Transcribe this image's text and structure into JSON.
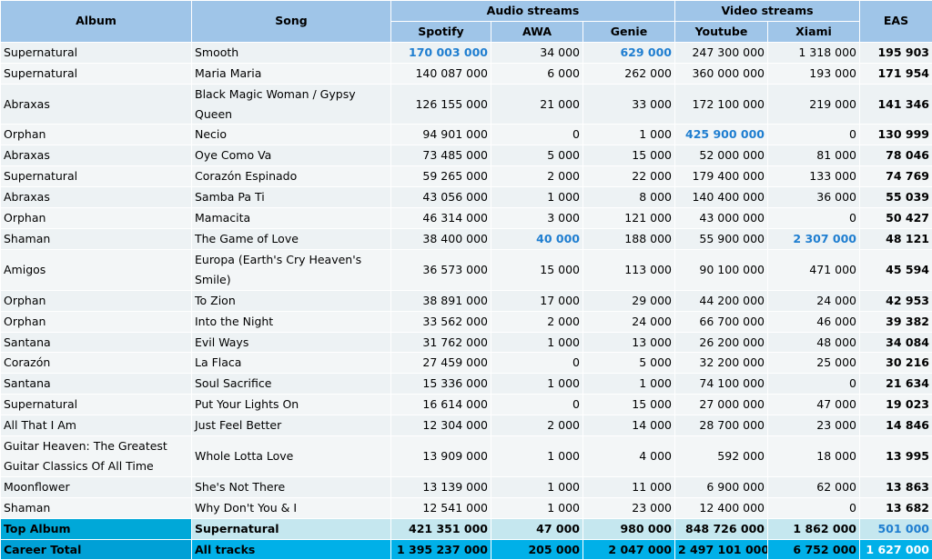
{
  "headers": {
    "album": "Album",
    "song": "Song",
    "audio_group": "Audio streams",
    "video_group": "Video streams",
    "eas": "EAS",
    "spotify": "Spotify",
    "awa": "AWA",
    "genie": "Genie",
    "youtube": "Youtube",
    "xiami": "Xiami"
  },
  "rows": [
    {
      "album": "Supernatural",
      "song": "Smooth",
      "spotify": "170 003 000",
      "awa": "34 000",
      "genie": "629 000",
      "youtube": "247 300 000",
      "xiami": "1 318 000",
      "eas": "195 903",
      "hl": [
        "spotify",
        "genie"
      ]
    },
    {
      "album": "Supernatural",
      "song": "Maria Maria",
      "spotify": "140 087 000",
      "awa": "6 000",
      "genie": "262 000",
      "youtube": "360 000 000",
      "xiami": "193 000",
      "eas": "171 954",
      "hl": []
    },
    {
      "album": "Abraxas",
      "song": "Black Magic Woman / Gypsy Queen",
      "spotify": "126 155 000",
      "awa": "21 000",
      "genie": "33 000",
      "youtube": "172 100 000",
      "xiami": "219 000",
      "eas": "141 346",
      "hl": []
    },
    {
      "album": "Orphan",
      "song": "Necio",
      "spotify": "94 901 000",
      "awa": "0",
      "genie": "1 000",
      "youtube": "425 900 000",
      "xiami": "0",
      "eas": "130 999",
      "hl": [
        "youtube"
      ]
    },
    {
      "album": "Abraxas",
      "song": "Oye Como Va",
      "spotify": "73 485 000",
      "awa": "5 000",
      "genie": "15 000",
      "youtube": "52 000 000",
      "xiami": "81 000",
      "eas": "78 046",
      "hl": []
    },
    {
      "album": "Supernatural",
      "song": "Corazón Espinado",
      "spotify": "59 265 000",
      "awa": "2 000",
      "genie": "22 000",
      "youtube": "179 400 000",
      "xiami": "133 000",
      "eas": "74 769",
      "hl": []
    },
    {
      "album": "Abraxas",
      "song": "Samba Pa Ti",
      "spotify": "43 056 000",
      "awa": "1 000",
      "genie": "8 000",
      "youtube": "140 400 000",
      "xiami": "36 000",
      "eas": "55 039",
      "hl": []
    },
    {
      "album": "Orphan",
      "song": "Mamacita",
      "spotify": "46 314 000",
      "awa": "3 000",
      "genie": "121 000",
      "youtube": "43 000 000",
      "xiami": "0",
      "eas": "50 427",
      "hl": []
    },
    {
      "album": "Shaman",
      "song": "The Game of Love",
      "spotify": "38 400 000",
      "awa": "40 000",
      "genie": "188 000",
      "youtube": "55 900 000",
      "xiami": "2 307 000",
      "eas": "48 121",
      "hl": [
        "awa",
        "xiami"
      ]
    },
    {
      "album": "Amigos",
      "song": "Europa (Earth's Cry Heaven's Smile)",
      "spotify": "36 573 000",
      "awa": "15 000",
      "genie": "113 000",
      "youtube": "90 100 000",
      "xiami": "471 000",
      "eas": "45 594",
      "hl": []
    },
    {
      "album": "Orphan",
      "song": "To Zion",
      "spotify": "38 891 000",
      "awa": "17 000",
      "genie": "29 000",
      "youtube": "44 200 000",
      "xiami": "24 000",
      "eas": "42 953",
      "hl": []
    },
    {
      "album": "Orphan",
      "song": "Into the Night",
      "spotify": "33 562 000",
      "awa": "2 000",
      "genie": "24 000",
      "youtube": "66 700 000",
      "xiami": "46 000",
      "eas": "39 382",
      "hl": []
    },
    {
      "album": "Santana",
      "song": "Evil Ways",
      "spotify": "31 762 000",
      "awa": "1 000",
      "genie": "13 000",
      "youtube": "26 200 000",
      "xiami": "48 000",
      "eas": "34 084",
      "hl": []
    },
    {
      "album": "Corazón",
      "song": "La Flaca",
      "spotify": "27 459 000",
      "awa": "0",
      "genie": "5 000",
      "youtube": "32 200 000",
      "xiami": "25 000",
      "eas": "30 216",
      "hl": []
    },
    {
      "album": "Santana",
      "song": "Soul Sacrifice",
      "spotify": "15 336 000",
      "awa": "1 000",
      "genie": "1 000",
      "youtube": "74 100 000",
      "xiami": "0",
      "eas": "21 634",
      "hl": []
    },
    {
      "album": "Supernatural",
      "song": "Put Your Lights On",
      "spotify": "16 614 000",
      "awa": "0",
      "genie": "15 000",
      "youtube": "27 000 000",
      "xiami": "47 000",
      "eas": "19 023",
      "hl": []
    },
    {
      "album": "All That I Am",
      "song": "Just Feel Better",
      "spotify": "12 304 000",
      "awa": "2 000",
      "genie": "14 000",
      "youtube": "28 700 000",
      "xiami": "23 000",
      "eas": "14 846",
      "hl": []
    },
    {
      "album": "Guitar Heaven: The Greatest Guitar Classics Of All Time",
      "song": "Whole Lotta Love",
      "spotify": "13 909 000",
      "awa": "1 000",
      "genie": "4 000",
      "youtube": "592 000",
      "xiami": "18 000",
      "eas": "13 995",
      "hl": []
    },
    {
      "album": "Moonflower",
      "song": "She's Not There",
      "spotify": "13 139 000",
      "awa": "1 000",
      "genie": "11 000",
      "youtube": "6 900 000",
      "xiami": "62 000",
      "eas": "13 863",
      "hl": []
    },
    {
      "album": "Shaman",
      "song": "Why Don't You & I",
      "spotify": "12 541 000",
      "awa": "1 000",
      "genie": "23 000",
      "youtube": "12 400 000",
      "xiami": "0",
      "eas": "13 682",
      "hl": []
    }
  ],
  "top_album": {
    "label": "Top Album",
    "song": "Supernatural",
    "spotify": "421 351 000",
    "awa": "47 000",
    "genie": "980 000",
    "youtube": "848 726 000",
    "xiami": "1 862 000",
    "eas": "501 000"
  },
  "career_total": {
    "label": "Career Total",
    "song": "All tracks",
    "spotify": "1 395 237 000",
    "awa": "205 000",
    "genie": "2 047 000",
    "youtube": "2 497 101 000",
    "xiami": "6 752 000",
    "eas": "1 627 000"
  },
  "colors": {
    "header": "#9fc5e8",
    "highlight": "#1f7ed0",
    "top_row": "#c5e7ef",
    "career_row": "#00b0e8"
  }
}
